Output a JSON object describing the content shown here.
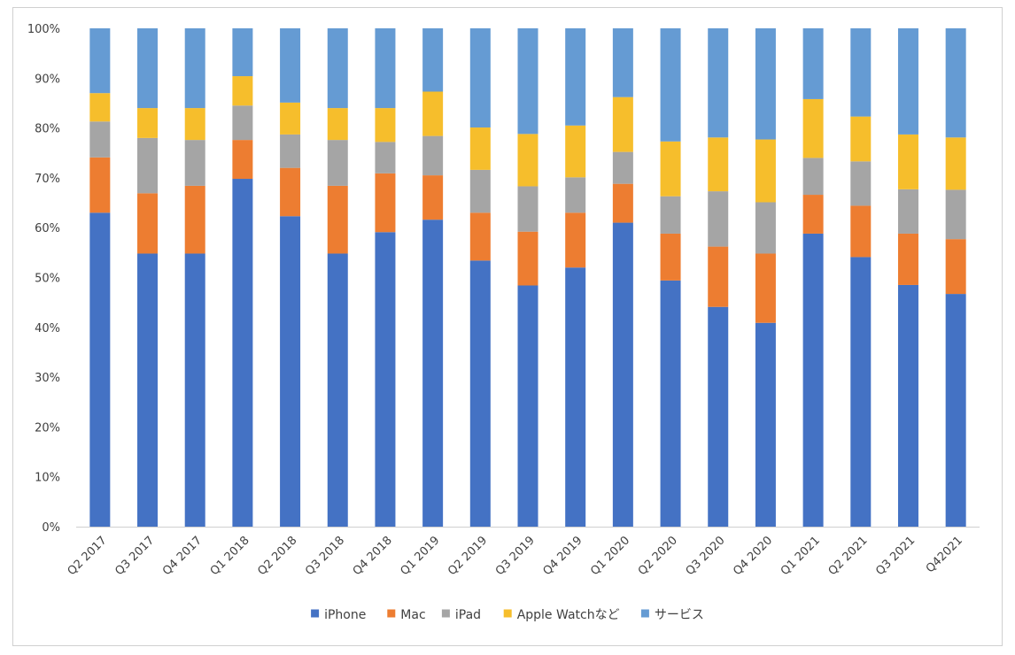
{
  "chart_data": {
    "type": "bar",
    "stacked": true,
    "percent_scale": true,
    "title": "",
    "xlabel": "",
    "ylabel": "",
    "ylim": [
      0,
      100
    ],
    "y_ticks": [
      "0%",
      "10%",
      "20%",
      "30%",
      "40%",
      "50%",
      "60%",
      "70%",
      "80%",
      "90%",
      "100%"
    ],
    "grid": false,
    "legend_position": "bottom",
    "categories": [
      "Q2 2017",
      "Q3 2017",
      "Q4 2017",
      "Q1 2018",
      "Q2 2018",
      "Q3 2018",
      "Q4 2018",
      "Q1 2019",
      "Q2 2019",
      "Q3 2019",
      "Q4 2019",
      "Q1 2020",
      "Q2 2020",
      "Q3 2020",
      "Q4 2020",
      "Q1 2021",
      "Q2 2021",
      "Q3 2021",
      "Q42021"
    ],
    "series": [
      {
        "name": "iPhone",
        "color": "#4472C4",
        "values": [
          63.0,
          54.8,
          54.8,
          69.8,
          62.3,
          54.8,
          59.1,
          61.6,
          53.4,
          48.4,
          52.0,
          61.0,
          49.4,
          44.1,
          40.9,
          58.8,
          54.1,
          48.5,
          46.7
        ]
      },
      {
        "name": "Mac",
        "color": "#ED7D31",
        "values": [
          11.1,
          12.1,
          13.6,
          7.8,
          9.7,
          13.6,
          11.8,
          8.9,
          9.6,
          10.8,
          11.0,
          7.8,
          9.4,
          12.1,
          13.9,
          7.8,
          10.3,
          10.3,
          11.0
        ]
      },
      {
        "name": "iPad",
        "color": "#A5A5A5",
        "values": [
          7.2,
          11.1,
          9.2,
          6.9,
          6.7,
          9.2,
          6.3,
          7.9,
          8.6,
          9.1,
          7.1,
          6.4,
          7.5,
          11.1,
          10.3,
          7.4,
          8.9,
          8.9,
          9.9
        ]
      },
      {
        "name": "Apple Watchなど",
        "color": "#F6BE2C",
        "values": [
          5.7,
          6.0,
          6.4,
          5.9,
          6.4,
          6.4,
          6.8,
          8.9,
          8.5,
          10.5,
          10.4,
          11.0,
          11.0,
          10.8,
          12.6,
          11.8,
          9.0,
          11.0,
          10.5
        ]
      },
      {
        "name": "サービス",
        "color": "#659BD3",
        "values": [
          13.0,
          16.0,
          16.0,
          9.6,
          14.9,
          16.0,
          16.0,
          12.7,
          19.9,
          21.2,
          19.5,
          13.8,
          22.7,
          21.9,
          22.3,
          14.2,
          17.7,
          21.3,
          21.9
        ]
      }
    ]
  }
}
